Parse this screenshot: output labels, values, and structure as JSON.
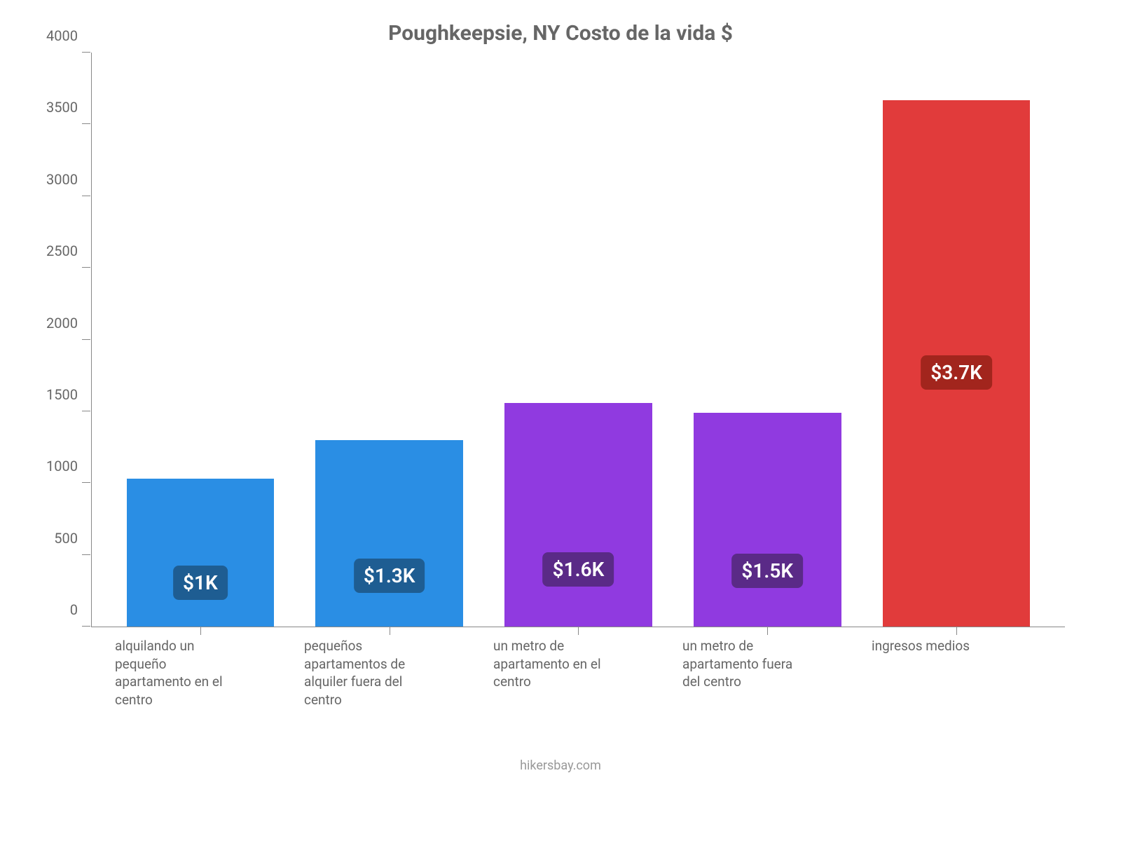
{
  "chart": {
    "type": "bar",
    "title": "Poughkeepsie, NY Costo de la vida $",
    "title_fontsize": 30,
    "title_color": "#666666",
    "background_color": "#ffffff",
    "axis_color": "#888888",
    "tick_label_color": "#666666",
    "tick_label_fontsize": 20,
    "xlabel_fontsize": 19,
    "ylim": [
      0,
      4000
    ],
    "ytick_step": 500,
    "yticks": [
      0,
      500,
      1000,
      1500,
      2000,
      2500,
      3000,
      3500,
      4000
    ],
    "bar_width": 0.78,
    "value_label_fontsize": 28,
    "categories": [
      "alquilando un pequeño apartamento en el centro",
      "pequeños apartamentos de alquiler fuera del centro",
      "un metro de apartamento en el centro",
      "un metro de apartamento fuera del centro",
      "ingresos medios"
    ],
    "values": [
      1030,
      1300,
      1560,
      1490,
      3670
    ],
    "value_labels": [
      "$1K",
      "$1.3K",
      "$1.6K",
      "$1.5K",
      "$3.7K"
    ],
    "bar_colors": [
      "#2a8ee4",
      "#2a8ee4",
      "#903ae0",
      "#903ae0",
      "#e13b3b"
    ],
    "value_label_bg_colors": [
      "#1e5d92",
      "#1e5d92",
      "#5a2a87",
      "#5a2a87",
      "#a2251d"
    ],
    "value_label_text_color": "#ffffff",
    "value_label_bottom_pct": [
      18,
      18,
      18,
      18,
      45
    ],
    "source": "hikersbay.com"
  }
}
